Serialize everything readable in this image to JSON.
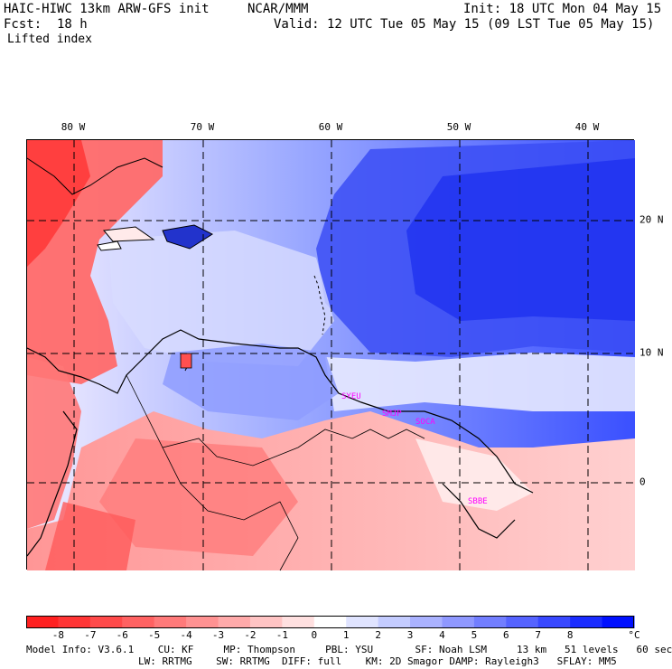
{
  "header": {
    "model": "HAIC-HIWC 13km ARW-GFS init",
    "org": "NCAR/MMM",
    "init": "Init: 18 UTC Mon 04 May 15",
    "fcst": "Fcst:  18 h",
    "valid": "Valid: 12 UTC Tue 05 May 15 (09 LST Tue 05 May 15)",
    "field": "Lifted index"
  },
  "map": {
    "lon_labels": [
      "80 W",
      "70 W",
      "60 W",
      "50 W",
      "40 W"
    ],
    "lat_labels": [
      "20 N",
      "10 N",
      "0"
    ],
    "stations": [
      "SYEU",
      "SMJP",
      "SOCA",
      "SBBE"
    ],
    "colors": {
      "station": "#ff00ff",
      "grid": "#000000",
      "coast": "#000000"
    }
  },
  "colorbar": {
    "unit": "°C",
    "ticks": [
      "-8",
      "-7",
      "-6",
      "-5",
      "-4",
      "-3",
      "-2",
      "-1",
      "0",
      "1",
      "2",
      "3",
      "4",
      "5",
      "6",
      "7",
      "8"
    ],
    "colors": [
      "#ff2020",
      "#ff3535",
      "#ff4a4a",
      "#ff6262",
      "#ff7a7a",
      "#ff9292",
      "#ffaaaa",
      "#ffc4c4",
      "#ffe0e0",
      "#ffffff",
      "#e0e4ff",
      "#c4ccff",
      "#aab2ff",
      "#8f98ff",
      "#727eff",
      "#5563ff",
      "#3848ff",
      "#1a2cff",
      "#0010ff"
    ]
  },
  "footer": {
    "line1": "Model Info: V3.6.1    CU: KF     MP: Thompson     PBL: YSU       SF: Noah LSM     13 km   51 levels   60 sec",
    "line2": "LW: RRTMG    SW: RRTMG  DIFF: full    KM: 2D Smagor DAMP: Rayleigh3   SFLAY: MM5"
  }
}
